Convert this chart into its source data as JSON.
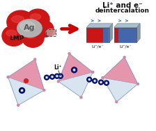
{
  "bg_color": "#ffffff",
  "text_liplus_e": "Li⁺ and e⁻",
  "text_deintercalation": "deintercalation",
  "text_ag": "Ag",
  "text_lmp": "LMP",
  "text_li_ion": "Li⁺",
  "text_liplus_label1": "Li⁺/e⁻",
  "text_liplus_label2": "Li⁺/e⁻",
  "arrow_color": "#cc0000",
  "red_blob_color": "#cc1515",
  "ag_blob_color": "#b0b0b0",
  "battery_red": "#cc1515",
  "battery_blue": "#4466aa",
  "battery_gray": "#a8bfd0",
  "polyhedra_fill": "#d8e4f0",
  "polyhedra_pink": "#e888a0",
  "polyhedra_edge": "#8899bb",
  "small_circle_color": "#cc88aa",
  "electron_color": "#000055",
  "electron_ring_color": "#0000aa"
}
